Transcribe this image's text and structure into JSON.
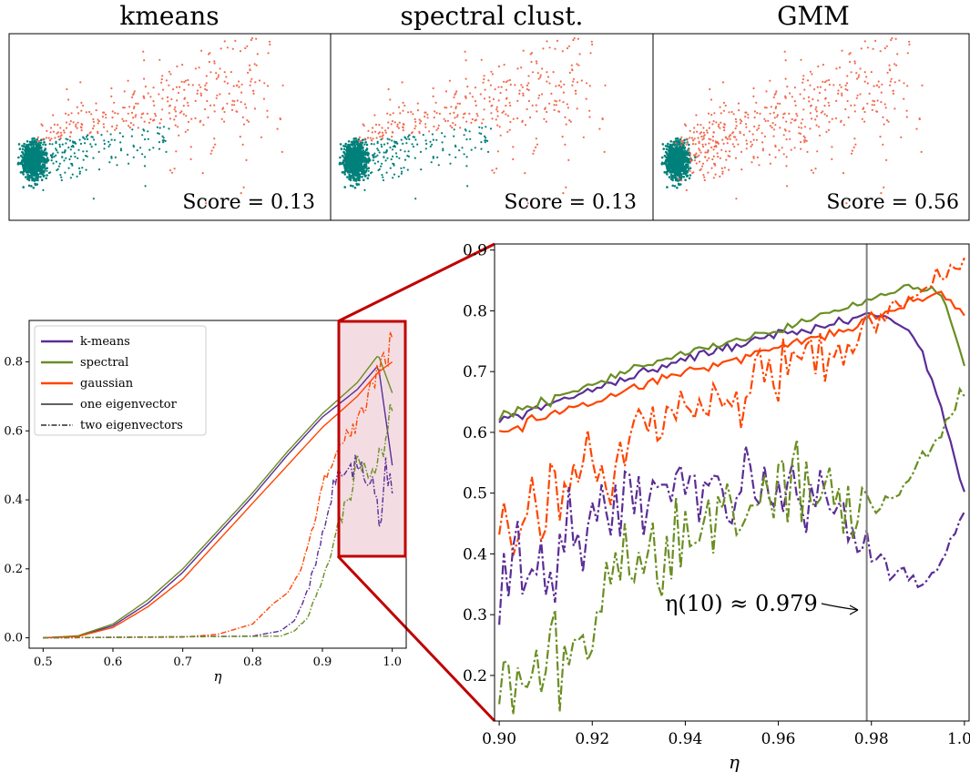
{
  "colors": {
    "teal": "#00807a",
    "coral": "#f26a50",
    "purple": "#5b2d96",
    "green": "#6a8e23",
    "orange": "#ff4500",
    "zoom_box": "#c00000",
    "zoom_fill": "#f3dde3"
  },
  "chart_data": [
    {
      "type": "scatter",
      "title": "kmeans",
      "annotation": "Score = 0.13",
      "clusters": [
        {
          "color": "teal",
          "center": [
            0.08,
            0.45
          ],
          "spread": "dense core with tail to the right"
        },
        {
          "color": "coral",
          "center": [
            0.45,
            0.3
          ],
          "spread": "wide upper-right"
        }
      ]
    },
    {
      "type": "scatter",
      "title": "spectral clust.",
      "annotation": "Score = 0.13",
      "clusters": [
        {
          "color": "teal",
          "center": [
            0.08,
            0.45
          ],
          "spread": "dense core with tail to the right"
        },
        {
          "color": "coral",
          "center": [
            0.45,
            0.3
          ],
          "spread": "wide upper-right"
        }
      ]
    },
    {
      "type": "scatter",
      "title": "GMM",
      "annotation": "Score = 0.56",
      "clusters": [
        {
          "color": "teal",
          "center": [
            0.08,
            0.45
          ],
          "spread": "tight core only"
        },
        {
          "color": "coral",
          "center": [
            0.4,
            0.4
          ],
          "spread": "everything outside the core"
        }
      ]
    },
    {
      "type": "line",
      "xlabel": "η",
      "ylabel": "",
      "xlim": [
        0.48,
        1.02
      ],
      "ylim": [
        -0.03,
        0.92
      ],
      "xticks": [
        "0.5",
        "0.6",
        "0.7",
        "0.8",
        "0.9",
        "1.0"
      ],
      "yticks": [
        "0.0",
        "0.2",
        "0.4",
        "0.6",
        "0.8"
      ],
      "legend": [
        "k-means",
        "spectral",
        "gaussian",
        "one eigenvector",
        "two eigenvectors"
      ],
      "legend_position": "top-left",
      "zoom_region": {
        "x": [
          0.925,
          1.0
        ],
        "y": [
          0.225,
          0.93
        ]
      }
    },
    {
      "type": "line",
      "xlabel": "η",
      "ylabel": "",
      "xlim": [
        0.899,
        1.001
      ],
      "ylim": [
        0.125,
        0.91
      ],
      "xticks": [
        "0.90",
        "0.92",
        "0.94",
        "0.96",
        "0.98",
        "1.00"
      ],
      "yticks": [
        "0.2",
        "0.3",
        "0.4",
        "0.5",
        "0.6",
        "0.7",
        "0.8",
        "0.9"
      ],
      "vline": 0.979,
      "annotation": "η(10) ≈ 0.979",
      "series": [
        {
          "name": "k-means",
          "style": "one eigenvector",
          "x": [
            0.9,
            0.92,
            0.94,
            0.96,
            0.975,
            0.98,
            0.985,
            0.99,
            0.995,
            1.0
          ],
          "y": [
            0.62,
            0.67,
            0.72,
            0.76,
            0.785,
            0.795,
            0.785,
            0.75,
            0.64,
            0.5
          ]
        },
        {
          "name": "spectral",
          "style": "one eigenvector",
          "x": [
            0.9,
            0.92,
            0.94,
            0.96,
            0.975,
            0.98,
            0.985,
            0.99,
            0.995,
            1.0
          ],
          "y": [
            0.625,
            0.68,
            0.73,
            0.77,
            0.805,
            0.82,
            0.83,
            0.84,
            0.83,
            0.71
          ]
        },
        {
          "name": "gaussian",
          "style": "one eigenvector",
          "x": [
            0.9,
            0.92,
            0.94,
            0.96,
            0.975,
            0.98,
            0.985,
            0.99,
            0.995,
            1.0
          ],
          "y": [
            0.6,
            0.65,
            0.7,
            0.74,
            0.77,
            0.79,
            0.8,
            0.82,
            0.83,
            0.8
          ]
        },
        {
          "name": "gaussian",
          "style": "two eigenvectors",
          "x": [
            0.9,
            0.92,
            0.94,
            0.96,
            0.975,
            0.98,
            0.985,
            0.99,
            0.995,
            1.0
          ],
          "y": [
            0.44,
            0.54,
            0.63,
            0.69,
            0.75,
            0.78,
            0.81,
            0.83,
            0.86,
            0.88
          ]
        },
        {
          "name": "k-means",
          "style": "two eigenvectors",
          "x": [
            0.9,
            0.92,
            0.94,
            0.96,
            0.975,
            0.98,
            0.985,
            0.99,
            0.995,
            1.0
          ],
          "y": [
            0.33,
            0.45,
            0.51,
            0.5,
            0.45,
            0.4,
            0.36,
            0.35,
            0.38,
            0.47
          ]
        },
        {
          "name": "spectral",
          "style": "two eigenvectors",
          "x": [
            0.9,
            0.92,
            0.94,
            0.96,
            0.975,
            0.98,
            0.985,
            0.99,
            0.995,
            1.0
          ],
          "y": [
            0.16,
            0.3,
            0.45,
            0.51,
            0.5,
            0.48,
            0.5,
            0.54,
            0.6,
            0.67
          ]
        }
      ]
    }
  ],
  "small_chart_series": [
    {
      "name": "k-means",
      "style": "one eigenvector",
      "x": [
        0.5,
        0.55,
        0.6,
        0.65,
        0.7,
        0.75,
        0.8,
        0.85,
        0.9,
        0.95,
        0.98,
        1.0
      ],
      "y": [
        0,
        0.005,
        0.035,
        0.1,
        0.19,
        0.3,
        0.41,
        0.53,
        0.64,
        0.72,
        0.79,
        0.5
      ]
    },
    {
      "name": "spectral",
      "style": "one eigenvector",
      "x": [
        0.5,
        0.55,
        0.6,
        0.65,
        0.7,
        0.75,
        0.8,
        0.85,
        0.9,
        0.95,
        0.98,
        1.0
      ],
      "y": [
        0,
        0.006,
        0.04,
        0.11,
        0.2,
        0.31,
        0.42,
        0.54,
        0.65,
        0.74,
        0.82,
        0.71
      ]
    },
    {
      "name": "gaussian",
      "style": "one eigenvector",
      "x": [
        0.5,
        0.55,
        0.6,
        0.65,
        0.7,
        0.75,
        0.8,
        0.85,
        0.9,
        0.95,
        0.98,
        1.0
      ],
      "y": [
        0,
        0.004,
        0.03,
        0.09,
        0.17,
        0.28,
        0.39,
        0.5,
        0.61,
        0.7,
        0.77,
        0.8
      ]
    },
    {
      "name": "gaussian",
      "style": "two eigenvectors",
      "x": [
        0.5,
        0.7,
        0.75,
        0.8,
        0.83,
        0.85,
        0.87,
        0.89,
        0.9,
        0.92,
        0.95,
        0.98,
        1.0
      ],
      "y": [
        0,
        0.002,
        0.01,
        0.04,
        0.1,
        0.13,
        0.2,
        0.35,
        0.44,
        0.54,
        0.63,
        0.78,
        0.88
      ]
    },
    {
      "name": "k-means",
      "style": "two eigenvectors",
      "x": [
        0.5,
        0.8,
        0.84,
        0.86,
        0.88,
        0.9,
        0.92,
        0.95,
        0.97,
        0.98,
        1.0
      ],
      "y": [
        0,
        0.005,
        0.02,
        0.05,
        0.14,
        0.3,
        0.46,
        0.5,
        0.45,
        0.36,
        0.47
      ]
    },
    {
      "name": "spectral",
      "style": "two eigenvectors",
      "x": [
        0.5,
        0.84,
        0.86,
        0.88,
        0.89,
        0.9,
        0.92,
        0.95,
        0.98,
        1.0
      ],
      "y": [
        0,
        0.005,
        0.02,
        0.06,
        0.12,
        0.17,
        0.3,
        0.5,
        0.49,
        0.67
      ]
    }
  ]
}
